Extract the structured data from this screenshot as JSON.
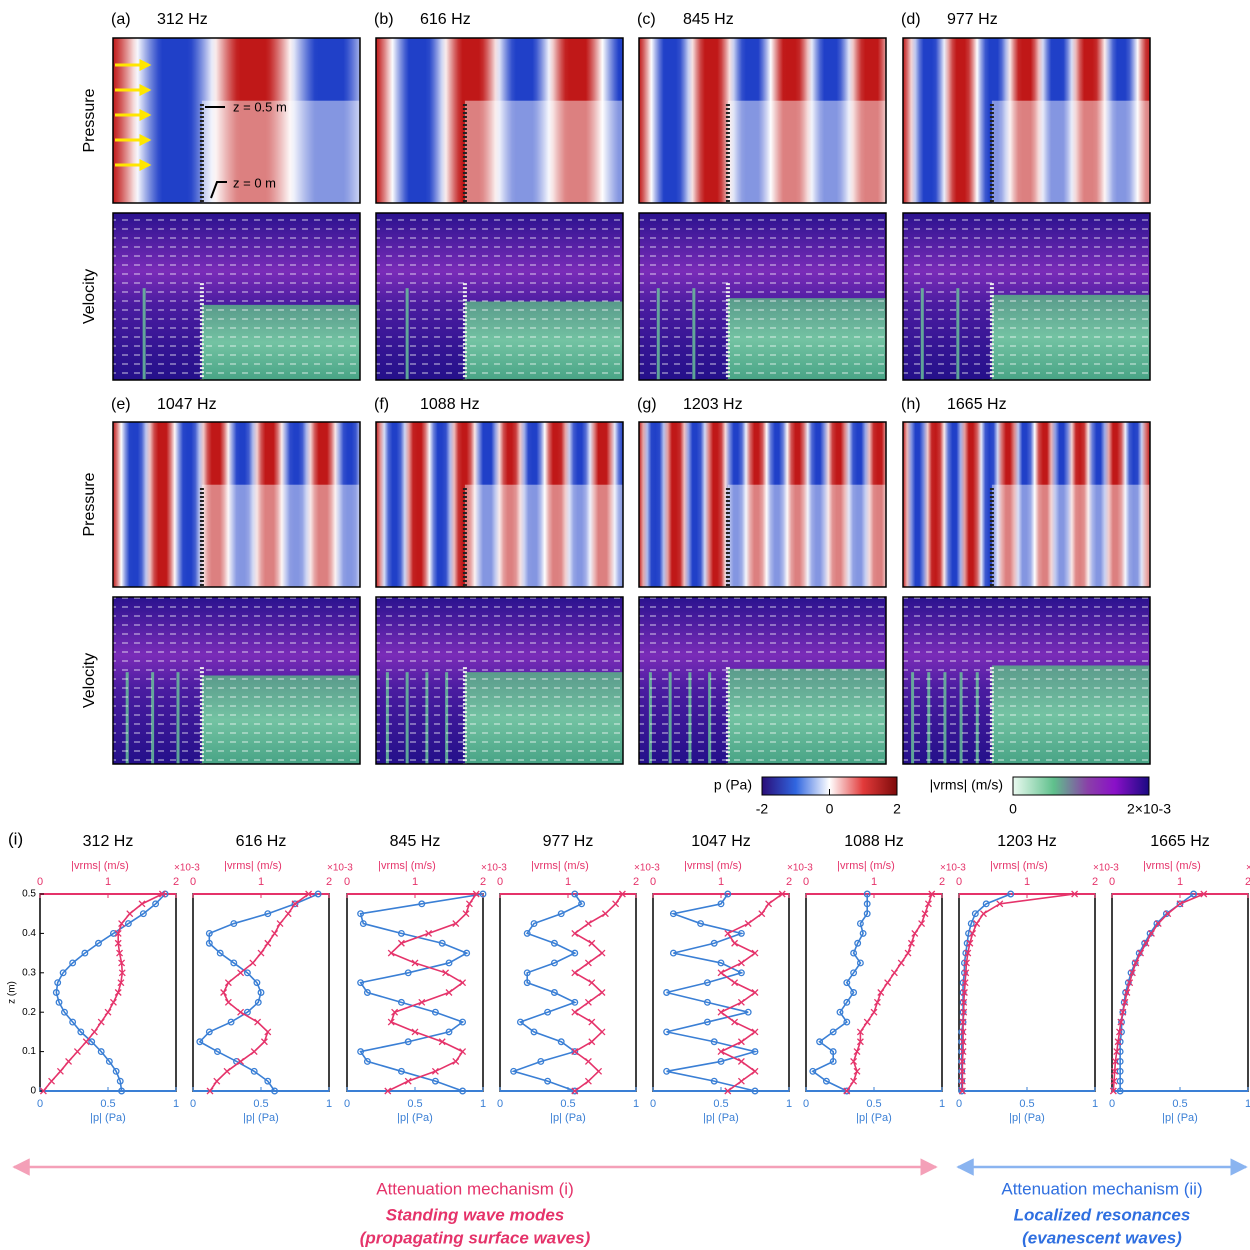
{
  "panels": [
    {
      "label": "(a)",
      "frequency": "312 Hz"
    },
    {
      "label": "(b)",
      "frequency": "616 Hz"
    },
    {
      "label": "(c)",
      "frequency": "845 Hz"
    },
    {
      "label": "(d)",
      "frequency": "977 Hz"
    },
    {
      "label": "(e)",
      "frequency": "1047 Hz"
    },
    {
      "label": "(f)",
      "frequency": "1088 Hz"
    },
    {
      "label": "(g)",
      "frequency": "1203 Hz"
    },
    {
      "label": "(h)",
      "frequency": "1665 Hz"
    }
  ],
  "row_labels": [
    "Pressure",
    "Velocity"
  ],
  "annotations": [
    "z = 0.5 m",
    "z = 0 m"
  ],
  "colorbars": [
    {
      "label": "p (Pa)",
      "lim": [
        -2,
        2
      ],
      "ticks": [
        -2,
        0,
        2
      ]
    },
    {
      "label": "|vrms| (m/s)",
      "lim": [
        0,
        0.002
      ],
      "ticks": [
        0,
        {
          "value": 0.002,
          "label": "2×10-3"
        }
      ]
    }
  ],
  "section_label": "(i)",
  "chart_data": [
    {
      "type": "line",
      "title": "312 Hz",
      "xlabel": "|p| (Pa)",
      "x2label": "|vrms| (m/s)",
      "x2multiplier": "×10-3",
      "ylabel": "z (m)",
      "xlim": [
        0,
        1
      ],
      "xticks": [
        0,
        0.5,
        1
      ],
      "x2lim": [
        0,
        2
      ],
      "x2ticks": [
        0,
        1,
        2
      ],
      "ylim": [
        0,
        0.5
      ],
      "yticks": [
        0,
        0.1,
        0.2,
        0.3,
        0.4,
        0.5
      ],
      "y": [
        0,
        0.025,
        0.05,
        0.075,
        0.1,
        0.125,
        0.15,
        0.175,
        0.2,
        0.225,
        0.25,
        0.275,
        0.3,
        0.325,
        0.35,
        0.375,
        0.4,
        0.425,
        0.45,
        0.475,
        0.5
      ],
      "series": [
        {
          "color": "#3a7fd5",
          "axis": "x",
          "values": [
            0.6,
            0.59,
            0.56,
            0.51,
            0.45,
            0.38,
            0.3,
            0.24,
            0.18,
            0.14,
            0.12,
            0.13,
            0.17,
            0.24,
            0.33,
            0.43,
            0.54,
            0.65,
            0.76,
            0.85,
            0.92
          ]
        },
        {
          "color": "#e5336a",
          "axis": "x2",
          "values": [
            0.05,
            0.17,
            0.3,
            0.42,
            0.55,
            0.68,
            0.8,
            0.9,
            1.0,
            1.08,
            1.15,
            1.19,
            1.21,
            1.2,
            1.17,
            1.15,
            1.15,
            1.2,
            1.32,
            1.5,
            1.8
          ]
        }
      ]
    },
    {
      "type": "line",
      "title": "616 Hz",
      "xlabel": "|p| (Pa)",
      "x2label": "|vrms| (m/s)",
      "x2multiplier": "×10-3",
      "xlim": [
        0,
        1
      ],
      "xticks": [
        0,
        0.5,
        1
      ],
      "x2lim": [
        0,
        2
      ],
      "x2ticks": [
        0,
        1,
        2
      ],
      "ylim": [
        0,
        0.5
      ],
      "y": [
        0,
        0.025,
        0.05,
        0.075,
        0.1,
        0.125,
        0.15,
        0.175,
        0.2,
        0.225,
        0.25,
        0.275,
        0.3,
        0.325,
        0.35,
        0.375,
        0.4,
        0.425,
        0.45,
        0.475,
        0.5
      ],
      "series": [
        {
          "color": "#3a7fd5",
          "axis": "x",
          "values": [
            0.6,
            0.55,
            0.45,
            0.32,
            0.18,
            0.05,
            0.12,
            0.28,
            0.4,
            0.48,
            0.5,
            0.47,
            0.4,
            0.3,
            0.2,
            0.12,
            0.12,
            0.3,
            0.55,
            0.75,
            0.92
          ]
        },
        {
          "color": "#e5336a",
          "axis": "x2",
          "values": [
            0.25,
            0.35,
            0.5,
            0.7,
            0.9,
            1.05,
            1.1,
            0.95,
            0.7,
            0.52,
            0.45,
            0.52,
            0.7,
            0.88,
            1.0,
            1.1,
            1.2,
            1.28,
            1.4,
            1.5,
            1.7
          ]
        }
      ]
    },
    {
      "type": "line",
      "title": "845 Hz",
      "xlabel": "|p| (Pa)",
      "x2label": "|vrms| (m/s)",
      "x2multiplier": "×10-3",
      "xlim": [
        0,
        1
      ],
      "xticks": [
        0,
        0.5,
        1
      ],
      "x2lim": [
        0,
        2
      ],
      "x2ticks": [
        0,
        1,
        2
      ],
      "ylim": [
        0,
        0.5
      ],
      "y": [
        0,
        0.025,
        0.05,
        0.075,
        0.1,
        0.125,
        0.15,
        0.175,
        0.2,
        0.225,
        0.25,
        0.275,
        0.3,
        0.325,
        0.35,
        0.375,
        0.4,
        0.425,
        0.45,
        0.475,
        0.5
      ],
      "series": [
        {
          "color": "#3a7fd5",
          "axis": "x",
          "values": [
            0.85,
            0.65,
            0.4,
            0.15,
            0.1,
            0.45,
            0.75,
            0.85,
            0.65,
            0.4,
            0.15,
            0.1,
            0.45,
            0.75,
            0.88,
            0.7,
            0.4,
            0.12,
            0.1,
            0.55,
            1.0
          ]
        },
        {
          "color": "#e5336a",
          "axis": "x2",
          "values": [
            0.6,
            0.9,
            1.3,
            1.6,
            1.7,
            1.4,
            1.0,
            0.65,
            0.7,
            1.1,
            1.5,
            1.7,
            1.45,
            1.0,
            0.65,
            0.8,
            1.2,
            1.6,
            1.75,
            1.8,
            1.9
          ]
        }
      ]
    },
    {
      "type": "line",
      "title": "977 Hz",
      "xlabel": "|p| (Pa)",
      "x2label": "|vrms| (m/s)",
      "x2multiplier": "×10-3",
      "xlim": [
        0,
        1
      ],
      "xticks": [
        0,
        0.5,
        1
      ],
      "x2lim": [
        0,
        2
      ],
      "x2ticks": [
        0,
        1,
        2
      ],
      "ylim": [
        0,
        0.5
      ],
      "y": [
        0,
        0.025,
        0.05,
        0.075,
        0.1,
        0.125,
        0.15,
        0.175,
        0.2,
        0.225,
        0.25,
        0.275,
        0.3,
        0.325,
        0.35,
        0.375,
        0.4,
        0.425,
        0.45,
        0.475,
        0.5
      ],
      "series": [
        {
          "color": "#3a7fd5",
          "axis": "x",
          "values": [
            0.55,
            0.35,
            0.1,
            0.3,
            0.55,
            0.45,
            0.25,
            0.15,
            0.35,
            0.55,
            0.4,
            0.2,
            0.2,
            0.4,
            0.55,
            0.4,
            0.2,
            0.25,
            0.45,
            0.6,
            0.55
          ]
        },
        {
          "color": "#e5336a",
          "axis": "x2",
          "values": [
            1.1,
            1.3,
            1.45,
            1.3,
            1.1,
            1.35,
            1.5,
            1.35,
            1.1,
            1.3,
            1.5,
            1.35,
            1.1,
            1.3,
            1.5,
            1.35,
            1.1,
            1.3,
            1.55,
            1.7,
            1.8
          ]
        }
      ]
    },
    {
      "type": "line",
      "title": "1047 Hz",
      "xlabel": "|p| (Pa)",
      "x2label": "|vrms| (m/s)",
      "x2multiplier": "×10-3",
      "xlim": [
        0,
        1
      ],
      "xticks": [
        0,
        0.5,
        1
      ],
      "x2lim": [
        0,
        2
      ],
      "x2ticks": [
        0,
        1,
        2
      ],
      "ylim": [
        0,
        0.5
      ],
      "y": [
        0,
        0.025,
        0.05,
        0.075,
        0.1,
        0.125,
        0.15,
        0.175,
        0.2,
        0.225,
        0.25,
        0.275,
        0.3,
        0.325,
        0.35,
        0.375,
        0.4,
        0.425,
        0.45,
        0.475,
        0.5
      ],
      "series": [
        {
          "color": "#3a7fd5",
          "axis": "x",
          "values": [
            0.75,
            0.45,
            0.1,
            0.5,
            0.75,
            0.45,
            0.1,
            0.4,
            0.7,
            0.4,
            0.1,
            0.4,
            0.65,
            0.5,
            0.15,
            0.45,
            0.65,
            0.35,
            0.15,
            0.5,
            0.55
          ]
        },
        {
          "color": "#e5336a",
          "axis": "x2",
          "values": [
            1.1,
            1.3,
            1.5,
            1.3,
            1.0,
            1.3,
            1.5,
            1.2,
            1.0,
            1.3,
            1.5,
            1.2,
            1.0,
            1.3,
            1.5,
            1.2,
            1.1,
            1.4,
            1.6,
            1.7,
            1.9
          ]
        }
      ]
    },
    {
      "type": "line",
      "title": "1088 Hz",
      "xlabel": "|p| (Pa)",
      "x2label": "|vrms| (m/s)",
      "x2multiplier": "×10-3",
      "xlim": [
        0,
        1
      ],
      "xticks": [
        0,
        0.5,
        1
      ],
      "x2lim": [
        0,
        2
      ],
      "x2ticks": [
        0,
        1,
        2
      ],
      "ylim": [
        0,
        0.5
      ],
      "y": [
        0,
        0.025,
        0.05,
        0.075,
        0.1,
        0.125,
        0.15,
        0.175,
        0.2,
        0.225,
        0.25,
        0.275,
        0.3,
        0.325,
        0.35,
        0.375,
        0.4,
        0.425,
        0.45,
        0.475,
        0.5
      ],
      "series": [
        {
          "color": "#3a7fd5",
          "axis": "x",
          "values": [
            0.3,
            0.15,
            0.05,
            0.2,
            0.2,
            0.1,
            0.2,
            0.3,
            0.25,
            0.3,
            0.35,
            0.3,
            0.35,
            0.4,
            0.35,
            0.38,
            0.42,
            0.4,
            0.45,
            0.45,
            0.45
          ]
        },
        {
          "color": "#e5336a",
          "axis": "x2",
          "values": [
            0.6,
            0.7,
            0.75,
            0.7,
            0.75,
            0.8,
            0.8,
            0.9,
            1.0,
            1.05,
            1.1,
            1.2,
            1.3,
            1.4,
            1.5,
            1.55,
            1.6,
            1.7,
            1.75,
            1.8,
            1.85
          ]
        }
      ]
    },
    {
      "type": "line",
      "title": "1203 Hz",
      "xlabel": "|p| (Pa)",
      "x2label": "|vrms| (m/s)",
      "x2multiplier": "×10-3",
      "xlim": [
        0,
        1
      ],
      "xticks": [
        0,
        0.5,
        1
      ],
      "x2lim": [
        0,
        2
      ],
      "x2ticks": [
        0,
        1,
        2
      ],
      "ylim": [
        0,
        0.5
      ],
      "y": [
        0,
        0.025,
        0.05,
        0.075,
        0.1,
        0.125,
        0.15,
        0.175,
        0.2,
        0.225,
        0.25,
        0.275,
        0.3,
        0.325,
        0.35,
        0.375,
        0.4,
        0.425,
        0.45,
        0.475,
        0.5
      ],
      "series": [
        {
          "color": "#3a7fd5",
          "axis": "x",
          "values": [
            0.02,
            0.02,
            0.02,
            0.02,
            0.02,
            0.02,
            0.02,
            0.03,
            0.03,
            0.03,
            0.03,
            0.03,
            0.04,
            0.04,
            0.05,
            0.06,
            0.07,
            0.09,
            0.12,
            0.2,
            0.38
          ]
        },
        {
          "color": "#e5336a",
          "axis": "x2",
          "values": [
            0.05,
            0.05,
            0.05,
            0.05,
            0.06,
            0.06,
            0.06,
            0.06,
            0.07,
            0.07,
            0.08,
            0.09,
            0.1,
            0.11,
            0.13,
            0.16,
            0.2,
            0.26,
            0.36,
            0.6,
            1.7
          ]
        }
      ]
    },
    {
      "type": "line",
      "title": "1665 Hz",
      "xlabel": "|p| (Pa)",
      "x2label": "|vrms| (m/s)",
      "x2multiplier": "×10-3",
      "xlim": [
        0,
        1
      ],
      "xticks": [
        0,
        0.5,
        1
      ],
      "x2lim": [
        0,
        2
      ],
      "x2ticks": [
        0,
        1,
        2
      ],
      "ylim": [
        0,
        0.5
      ],
      "y": [
        0,
        0.025,
        0.05,
        0.075,
        0.1,
        0.125,
        0.15,
        0.175,
        0.2,
        0.225,
        0.25,
        0.275,
        0.3,
        0.325,
        0.35,
        0.375,
        0.4,
        0.425,
        0.45,
        0.475,
        0.5
      ],
      "series": [
        {
          "color": "#3a7fd5",
          "axis": "x",
          "values": [
            0.06,
            0.06,
            0.06,
            0.06,
            0.06,
            0.06,
            0.07,
            0.07,
            0.08,
            0.09,
            0.1,
            0.12,
            0.14,
            0.17,
            0.2,
            0.24,
            0.28,
            0.33,
            0.4,
            0.5,
            0.6
          ]
        },
        {
          "color": "#e5336a",
          "axis": "x2",
          "values": [
            0.02,
            0.03,
            0.04,
            0.05,
            0.07,
            0.09,
            0.11,
            0.13,
            0.16,
            0.19,
            0.22,
            0.26,
            0.3,
            0.35,
            0.42,
            0.5,
            0.58,
            0.68,
            0.82,
            1.0,
            1.35
          ]
        }
      ]
    }
  ],
  "mechanisms": [
    {
      "title": "Attenuation mechanism (i)",
      "subtitle": "Standing wave modes",
      "note": "(propagating surface waves)",
      "color": "#e5336a"
    },
    {
      "title": "Attenuation mechanism (ii)",
      "subtitle": "Localized resonances",
      "note": "(evanescent waves)",
      "color": "#2f6fe0"
    }
  ]
}
